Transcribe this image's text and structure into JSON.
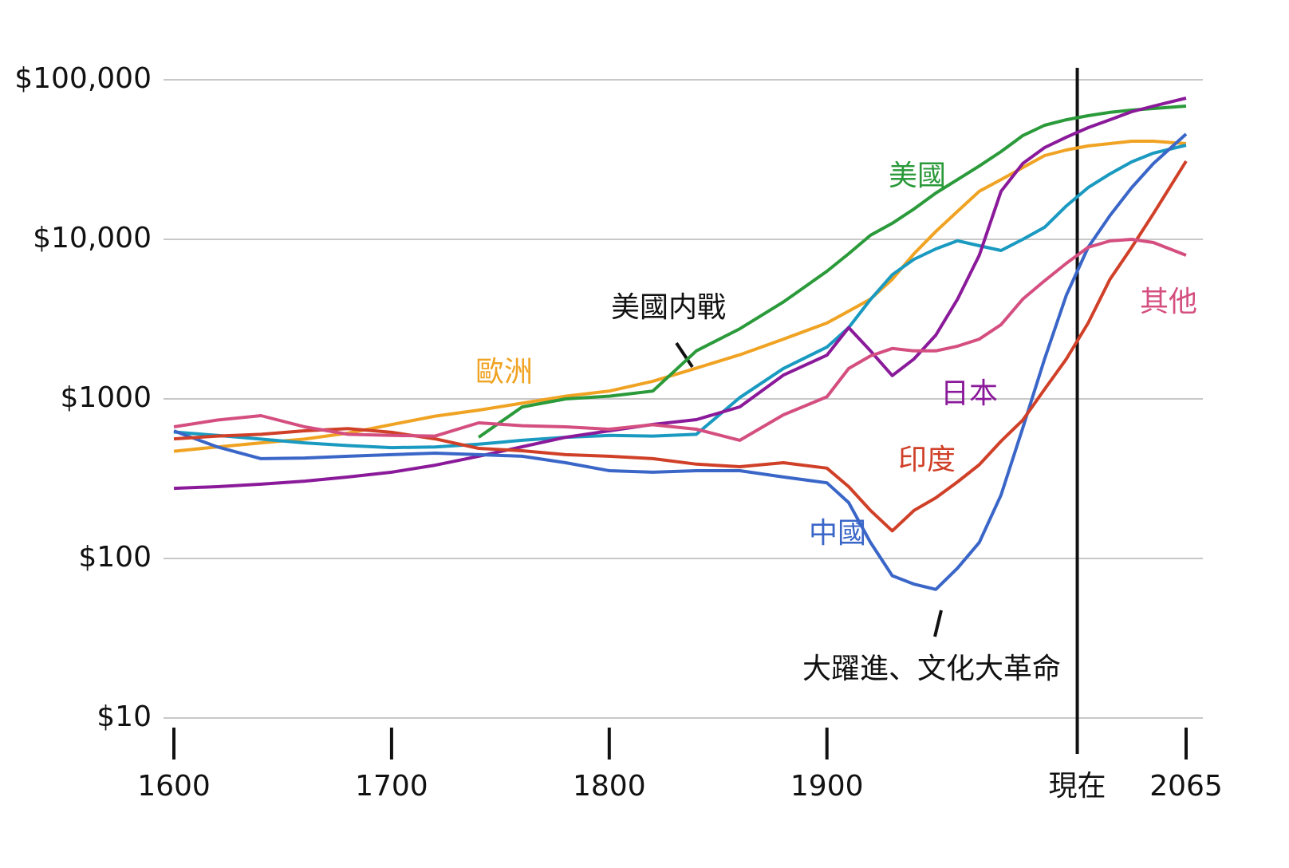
{
  "chart_data": {
    "type": "line",
    "x": [
      1600,
      1620,
      1640,
      1660,
      1680,
      1700,
      1720,
      1740,
      1760,
      1780,
      1800,
      1820,
      1840,
      1860,
      1880,
      1900,
      1910,
      1920,
      1930,
      1940,
      1950,
      1960,
      1970,
      1980,
      1990,
      2000,
      2010,
      2020,
      2030,
      2040,
      2050,
      2065
    ],
    "xlim": [
      1600,
      2065
    ],
    "xticks": [
      1600,
      1700,
      1800,
      1900,
      {
        "value": 2015,
        "label": "現在"
      },
      2065
    ],
    "ylim": [
      10,
      100000
    ],
    "yticks": [
      {
        "value": 10,
        "label": "$10"
      },
      {
        "value": 100,
        "label": "$100"
      },
      {
        "value": 1000,
        "label": "$1000"
      },
      {
        "value": 10000,
        "label": "$10,000"
      },
      {
        "value": 100000,
        "label": "$100,000"
      }
    ],
    "log_scale": "y",
    "grid": true,
    "series": [
      {
        "name": "歐洲",
        "color": "#f0a323",
        "values": [
          470,
          500,
          530,
          560,
          610,
          690,
          780,
          850,
          940,
          1040,
          1120,
          1290,
          1560,
          1890,
          2370,
          2990,
          3550,
          4220,
          5620,
          8130,
          11200,
          15000,
          20000,
          23700,
          28200,
          33500,
          36300,
          38500,
          39800,
          41200,
          41200,
          39800
        ]
      },
      {
        "name": "美國",
        "color": "#2a9a3a",
        "values": [
          null,
          null,
          null,
          null,
          null,
          null,
          null,
          575,
          890,
          1000,
          1040,
          1120,
          2000,
          2750,
          4050,
          6310,
          8130,
          10600,
          12600,
          15500,
          19500,
          23700,
          28800,
          35500,
          44700,
          51900,
          56200,
          59600,
          62500,
          64600,
          66100,
          68400
        ]
      },
      {
        "color": "#1a9ac0",
        "values": [
          620,
          590,
          560,
          530,
          510,
          495,
          500,
          520,
          550,
          575,
          590,
          585,
          600,
          1020,
          1550,
          2110,
          2800,
          4200,
          6000,
          7500,
          8710,
          9790,
          9120,
          8510,
          10000,
          11900,
          16200,
          21100,
          25700,
          30600,
          34700,
          38900
        ]
      },
      {
        "name": "日本",
        "color": "#8a1a9a",
        "values": [
          275,
          282,
          292,
          305,
          324,
          347,
          384,
          437,
          501,
          575,
          631,
          692,
          741,
          891,
          1410,
          1880,
          2800,
          2000,
          1400,
          1780,
          2510,
          4220,
          7940,
          20000,
          29900,
          37600,
          43700,
          50100,
          56200,
          63100,
          68400,
          76700
        ]
      },
      {
        "name": "中國",
        "color": "#3a66c8",
        "values": [
          630,
          500,
          422,
          426,
          437,
          447,
          457,
          447,
          437,
          398,
          355,
          347,
          355,
          355,
          324,
          298,
          224,
          126,
          78,
          69,
          64,
          87,
          126,
          250,
          659,
          1780,
          4470,
          8910,
          14100,
          21100,
          29900,
          45700
        ]
      },
      {
        "name": "印度",
        "color": "#d04028",
        "values": [
          562,
          585,
          600,
          631,
          651,
          617,
          562,
          490,
          473,
          447,
          437,
          422,
          390,
          376,
          398,
          368,
          282,
          200,
          149,
          200,
          240,
          302,
          387,
          543,
          737,
          1150,
          1780,
          2990,
          5620,
          8910,
          14500,
          30900
        ]
      },
      {
        "name": "其他",
        "color": "#d44f80",
        "values": [
          668,
          737,
          785,
          668,
          600,
          590,
          585,
          708,
          679,
          668,
          646,
          689,
          646,
          550,
          794,
          1030,
          1550,
          1860,
          2070,
          2000,
          2000,
          2140,
          2370,
          2920,
          4220,
          5500,
          7080,
          8910,
          9770,
          10000,
          9550,
          7940
        ]
      }
    ],
    "annotations": [
      "美國内戰",
      "大躍進、文化大革命"
    ]
  }
}
